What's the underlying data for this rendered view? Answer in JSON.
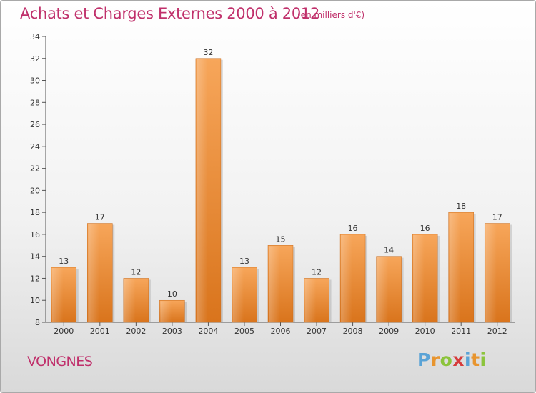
{
  "chart_data": {
    "type": "bar",
    "title": "Achats et Charges Externes 2000 à 2012",
    "subtitle": "(en milliers d'€)",
    "categories": [
      "2000",
      "2001",
      "2002",
      "2003",
      "2004",
      "2005",
      "2006",
      "2007",
      "2008",
      "2009",
      "2010",
      "2011",
      "2012"
    ],
    "values": [
      13,
      17,
      12,
      10,
      32,
      13,
      15,
      12,
      16,
      14,
      16,
      18,
      17
    ],
    "ylim": [
      8,
      34
    ],
    "yticks": [
      8,
      10,
      12,
      14,
      16,
      18,
      20,
      22,
      24,
      26,
      28,
      30,
      32,
      34
    ],
    "grid": false,
    "bar_color": "#ef8c34"
  },
  "footer": {
    "place": "VONGNES",
    "logo_letters": [
      {
        "char": "P",
        "color": "#5aa3d6"
      },
      {
        "char": "r",
        "color": "#e8952f"
      },
      {
        "char": "o",
        "color": "#8cc43c"
      },
      {
        "char": "x",
        "color": "#d63b3b"
      },
      {
        "char": "i",
        "color": "#5aa3d6"
      },
      {
        "char": "t",
        "color": "#e8952f"
      },
      {
        "char": "i",
        "color": "#8cc43c"
      }
    ]
  }
}
